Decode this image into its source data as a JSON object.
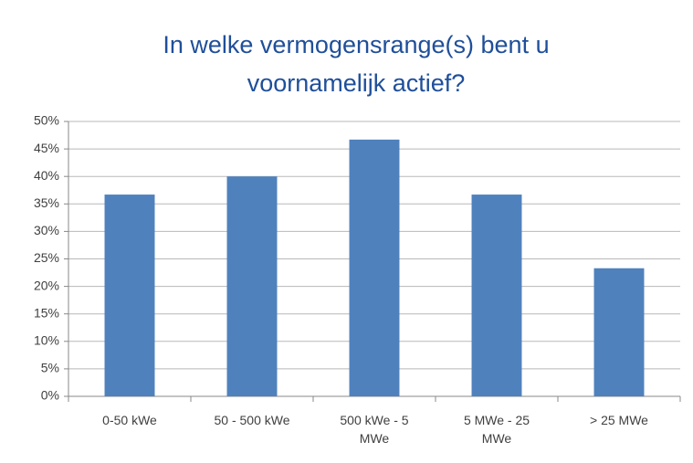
{
  "chart_data": {
    "type": "bar",
    "title": "In welke vermogensrange(s) bent u voornamelijk actief?",
    "categories": [
      "0-50 kWe",
      "50 - 500 kWe",
      "500 kWe - 5 MWe",
      "5 MWe - 25 MWe",
      "> 25 MWe"
    ],
    "values": [
      36.7,
      40,
      46.7,
      36.7,
      23.3
    ],
    "color": "#4f81bd",
    "ylim": [
      0,
      50
    ],
    "yticks": [
      {
        "value": 0,
        "label": "0%"
      },
      {
        "value": 5,
        "label": "5%"
      },
      {
        "value": 10,
        "label": "10%"
      },
      {
        "value": 15,
        "label": "15%"
      },
      {
        "value": 20,
        "label": "20%"
      },
      {
        "value": 25,
        "label": "25%"
      },
      {
        "value": 30,
        "label": "30%"
      },
      {
        "value": 35,
        "label": "35%"
      },
      {
        "value": 40,
        "label": "40%"
      },
      {
        "value": 45,
        "label": "45%"
      },
      {
        "value": 50,
        "label": "50%"
      }
    ],
    "grid": true
  }
}
